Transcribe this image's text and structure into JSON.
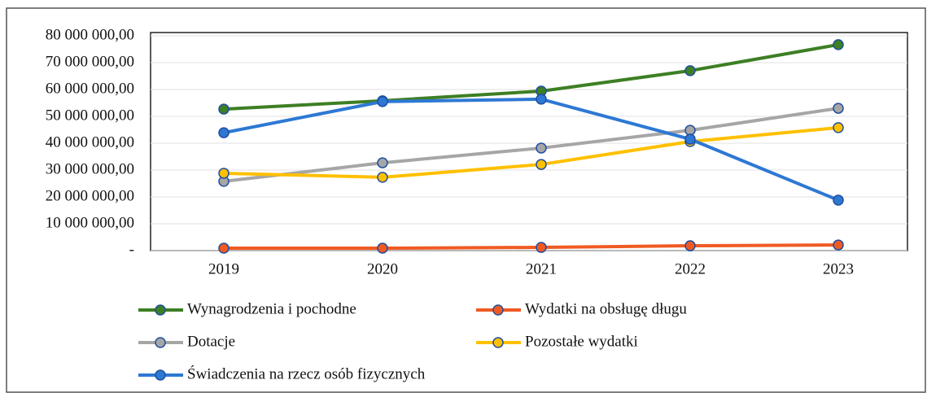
{
  "chart_data": {
    "type": "line",
    "categories": [
      "2019",
      "2020",
      "2021",
      "2022",
      "2023"
    ],
    "series": [
      {
        "name": "Wynagrodzenia i pochodne",
        "color": "#3d7f24",
        "values": [
          52700000,
          55800000,
          59400000,
          67000000,
          76700000
        ]
      },
      {
        "name": "Wydatki na obsługę długu",
        "color": "#f05a22",
        "values": [
          900000,
          900000,
          1200000,
          1800000,
          2100000
        ]
      },
      {
        "name": "Dotacje",
        "color": "#a6a6a6",
        "values": [
          25800000,
          32700000,
          38200000,
          44800000,
          53000000
        ]
      },
      {
        "name": "Pozostałe wydatki",
        "color": "#ffc000",
        "values": [
          28800000,
          27300000,
          32100000,
          40600000,
          45800000
        ]
      },
      {
        "name": "Świadczenia na rzecz osób fizycznych",
        "color": "#2e78d4",
        "values": [
          43900000,
          55500000,
          56400000,
          41500000,
          18800000
        ]
      }
    ],
    "ylim": [
      0,
      80000000
    ],
    "yticks": [
      {
        "value": 0,
        "label": "-"
      },
      {
        "value": 10000000,
        "label": "10 000 000,00"
      },
      {
        "value": 20000000,
        "label": "20 000 000,00"
      },
      {
        "value": 30000000,
        "label": "30 000 000,00"
      },
      {
        "value": 40000000,
        "label": "40 000 000,00"
      },
      {
        "value": 50000000,
        "label": "50 000 000,00"
      },
      {
        "value": 60000000,
        "label": "60 000 000,00"
      },
      {
        "value": 70000000,
        "label": "70 000 000,00"
      },
      {
        "value": 80000000,
        "label": "80 000 000,00"
      }
    ],
    "grid": true
  }
}
